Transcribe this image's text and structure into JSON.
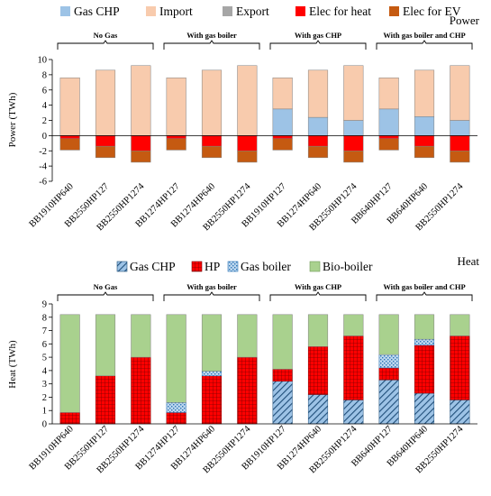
{
  "chart_data": [
    {
      "type": "bar",
      "title": "Power",
      "ylabel": "Power (TWh)",
      "ylim": [
        -6,
        10
      ],
      "yticks": [
        -6,
        -4,
        -2,
        0,
        2,
        4,
        6,
        8,
        10
      ],
      "grid": false,
      "legend_placement": "top",
      "categories": [
        "BB1910HP640",
        "BB2550HP127",
        "BB2550HP1274",
        "BB1274HP127",
        "BB1274HP640",
        "BB2550HP1274",
        "BB1910HP127",
        "BB1274HP640",
        "BB2550HP1274",
        "BB640HP127",
        "BB640HP640",
        "BB2550HP1274"
      ],
      "groups": [
        {
          "label": "No Gas",
          "start": 0,
          "end": 2
        },
        {
          "label": "With gas boiler",
          "start": 3,
          "end": 5
        },
        {
          "label": "With gas CHP",
          "start": 6,
          "end": 8
        },
        {
          "label": "With gas boiler and CHP",
          "start": 9,
          "end": 11
        }
      ],
      "series": [
        {
          "name": "Gas CHP",
          "color": "#9dc3e6",
          "values": [
            0,
            0,
            0,
            0,
            0,
            0,
            3.5,
            2.4,
            2.0,
            3.5,
            2.5,
            2.0
          ]
        },
        {
          "name": "Import",
          "color": "#f8cbad",
          "values": [
            7.6,
            8.6,
            9.2,
            7.6,
            8.6,
            9.2,
            4.1,
            6.2,
            7.2,
            4.1,
            6.1,
            7.2
          ]
        },
        {
          "name": "Export",
          "color": "#a6a6a6",
          "values": [
            0,
            0,
            0,
            0,
            0,
            0,
            0,
            0,
            0,
            0,
            0,
            0
          ]
        },
        {
          "name": "Elec for heat",
          "color": "#ff0000",
          "values": [
            -0.4,
            -1.4,
            -2.0,
            -0.4,
            -1.4,
            -2.0,
            -0.4,
            -1.4,
            -2.0,
            -0.4,
            -1.4,
            -2.0
          ]
        },
        {
          "name": "Elec for EV",
          "color": "#c55a11",
          "values": [
            -1.5,
            -1.5,
            -1.5,
            -1.5,
            -1.5,
            -1.5,
            -1.5,
            -1.5,
            -1.5,
            -1.5,
            -1.5,
            -1.5
          ]
        }
      ]
    },
    {
      "type": "bar",
      "title": "Heat",
      "ylabel": "Heat (TWh)",
      "ylim": [
        0,
        9
      ],
      "yticks": [
        0,
        1,
        2,
        3,
        4,
        5,
        6,
        7,
        8,
        9
      ],
      "grid": false,
      "legend_placement": "top",
      "categories": [
        "BB1910HP640",
        "BB2550HP127",
        "BB2550HP1274",
        "BB1274HP127",
        "BB1274HP640",
        "BB2550HP1274",
        "BB1910HP127",
        "BB1274HP640",
        "BB2550HP1274",
        "BB640HP127",
        "BB640HP640",
        "BB2550HP1274"
      ],
      "groups": [
        {
          "label": "No Gas",
          "start": 0,
          "end": 2
        },
        {
          "label": "With gas boiler",
          "start": 3,
          "end": 5
        },
        {
          "label": "With gas CHP",
          "start": 6,
          "end": 8
        },
        {
          "label": "With gas boiler and CHP",
          "start": 9,
          "end": 11
        }
      ],
      "series": [
        {
          "name": "Gas CHP",
          "color": "#9dc3e6",
          "pattern": "diagonal",
          "values": [
            0,
            0,
            0,
            0,
            0,
            0,
            3.2,
            2.2,
            1.8,
            3.3,
            2.3,
            1.8
          ]
        },
        {
          "name": "HP",
          "color": "#ff0000",
          "pattern": "grid",
          "values": [
            0.85,
            3.6,
            5.0,
            0.85,
            3.6,
            5.0,
            0.9,
            3.6,
            4.8,
            0.9,
            3.6,
            4.8
          ]
        },
        {
          "name": "Gas boiler",
          "color": "#9dc3e6",
          "pattern": "dots",
          "values": [
            0,
            0,
            0,
            0.75,
            0.35,
            0,
            0,
            0,
            0,
            1.0,
            0.45,
            0
          ]
        },
        {
          "name": "Bio-boiler",
          "color": "#a9d18e",
          "values": [
            7.35,
            4.6,
            3.2,
            6.6,
            4.25,
            3.2,
            4.1,
            2.4,
            1.6,
            3.0,
            1.85,
            1.6
          ]
        }
      ]
    }
  ]
}
